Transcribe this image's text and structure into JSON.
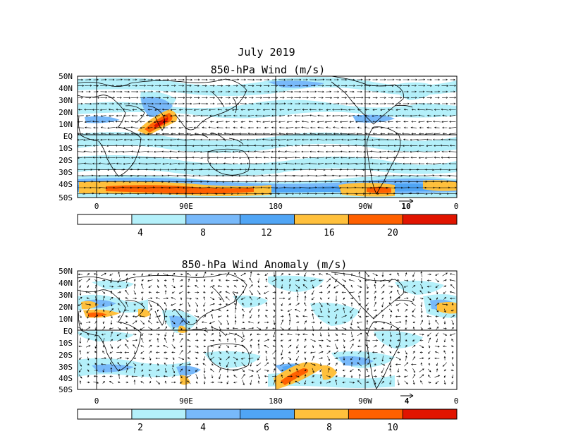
{
  "figure": {
    "title_line1": "July 2019",
    "colors": {
      "c0": "#ffffff",
      "c1": "#b4f0fa",
      "c2": "#78b9fa",
      "c3": "#50a5f5",
      "c4": "#ffc03c",
      "c5": "#ff6000",
      "c6": "#e11400",
      "coast": "#000000",
      "arrow": "#000000"
    }
  },
  "panels": [
    {
      "id": "mean",
      "title": "850-hPa Wind (m/s)",
      "lat_labels": [
        "50N",
        "40N",
        "30N",
        "20N",
        "10N",
        "EQ",
        "10S",
        "20S",
        "30S",
        "40S",
        "50S"
      ],
      "lon_labels": [
        "0",
        "90E",
        "180",
        "90W",
        "0"
      ],
      "ref_vector": "10",
      "colorbar": {
        "labels": [
          "4",
          "8",
          "12",
          "16",
          "20"
        ],
        "colors": [
          "#ffffff",
          "#b4f0fa",
          "#78b9fa",
          "#50a5f5",
          "#ffc03c",
          "#ff6000",
          "#e11400"
        ]
      }
    },
    {
      "id": "anomaly",
      "title": "850-hPa Wind Anomaly (m/s)",
      "lat_labels": [
        "50N",
        "40N",
        "30N",
        "20N",
        "10N",
        "EQ",
        "10S",
        "20S",
        "30S",
        "40S",
        "50S"
      ],
      "lon_labels": [
        "0",
        "90E",
        "180",
        "90W",
        "0"
      ],
      "ref_vector": "4",
      "colorbar": {
        "labels": [
          "2",
          "4",
          "6",
          "8",
          "10"
        ],
        "colors": [
          "#ffffff",
          "#b4f0fa",
          "#78b9fa",
          "#50a5f5",
          "#ffc03c",
          "#ff6000",
          "#e11400"
        ]
      }
    }
  ]
}
